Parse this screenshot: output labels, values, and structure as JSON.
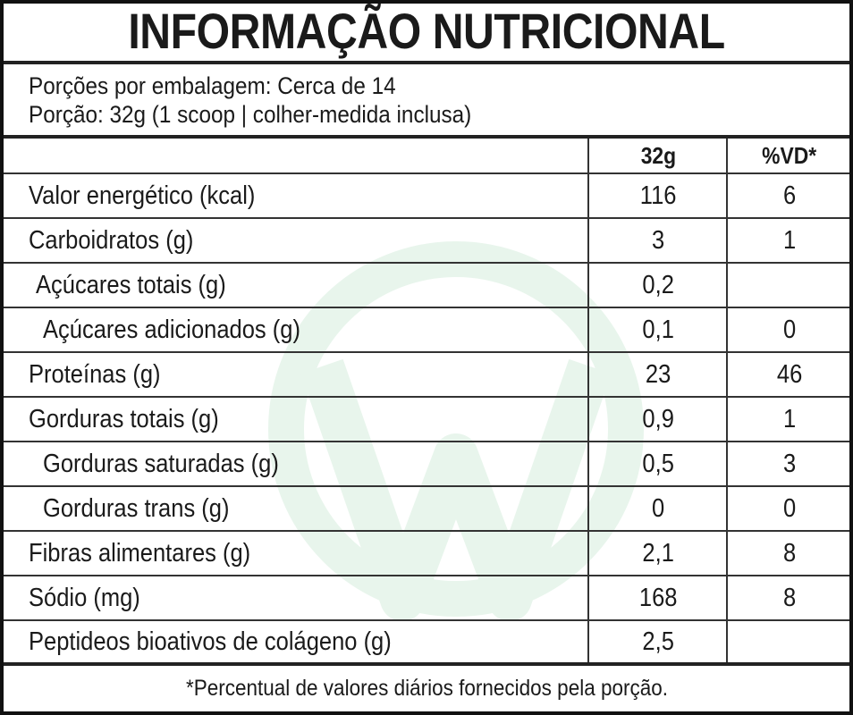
{
  "title": "INFORMAÇÃO NUTRICIONAL",
  "servings_per_package": "Porções por embalagem: Cerca de 14",
  "serving_size": "Porção: 32g (1 scoop | colher-medida inclusa)",
  "columns": {
    "label": "",
    "amount": "32g",
    "dv": "%VD*"
  },
  "rows": [
    {
      "label": "Valor energético (kcal)",
      "amount": "116",
      "dv": "6",
      "indent": 0
    },
    {
      "label": "Carboidratos (g)",
      "amount": "3",
      "dv": "1",
      "indent": 0
    },
    {
      "label": "Açúcares totais (g)",
      "amount": "0,2",
      "dv": "",
      "indent": 1
    },
    {
      "label": "Açúcares adicionados (g)",
      "amount": "0,1",
      "dv": "0",
      "indent": 2
    },
    {
      "label": "Proteínas (g)",
      "amount": "23",
      "dv": "46",
      "indent": 0
    },
    {
      "label": "Gorduras totais (g)",
      "amount": "0,9",
      "dv": "1",
      "indent": 0
    },
    {
      "label": "Gorduras saturadas (g)",
      "amount": "0,5",
      "dv": "3",
      "indent": 2
    },
    {
      "label": "Gorduras trans (g)",
      "amount": "0",
      "dv": "0",
      "indent": 2
    },
    {
      "label": "Fibras alimentares (g)",
      "amount": "2,1",
      "dv": "8",
      "indent": 0
    },
    {
      "label": "Sódio (mg)",
      "amount": "168",
      "dv": "8",
      "indent": 0
    },
    {
      "label": "Peptideos bioativos de colágeno (g)",
      "amount": "2,5",
      "dv": "",
      "indent": 0
    }
  ],
  "footnote": "*Percentual de valores diários fornecidos pela porção.",
  "watermark_icon": "w-logo-icon",
  "watermark_color": "#e6f4ea"
}
